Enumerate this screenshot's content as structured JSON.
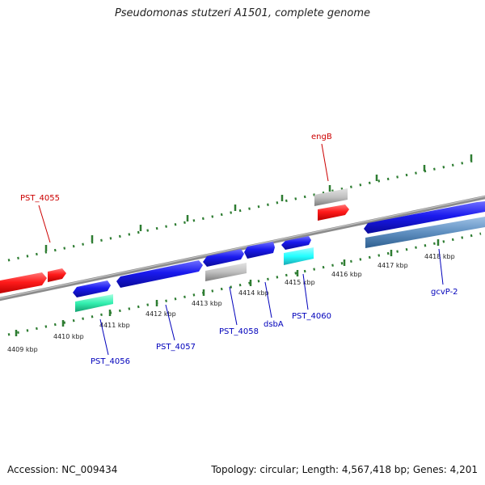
{
  "title": "Pseudomonas stutzeri A1501, complete genome",
  "footer": {
    "accession": "Accession: NC_009434",
    "summary": "Topology: circular; Length: 4,567,418 bp; Genes: 4,201"
  },
  "colors": {
    "backbone": "#8c8c8c",
    "tick": "#2e7d32",
    "kbp_label": "#222222",
    "gene_label_red": "#cc0000",
    "gene_label_blue": "#0000bb",
    "feature_red": "#ff1a1a",
    "feature_blue": "#1a1aee",
    "feature_grey": "#c0c0c0",
    "feature_cyan": "#22ffff",
    "feature_seagreen": "#33f0b0",
    "feature_steelblue": "#5f8fc0"
  },
  "kbp_labels": [
    "4409 kbp",
    "4410 kbp",
    "4411 kbp",
    "4412 kbp",
    "4413 kbp",
    "4414 kbp",
    "4415 kbp",
    "4416 kbp",
    "4417 kbp",
    "4418 kbp"
  ],
  "gene_labels_top": [
    "engB",
    "PST_4055"
  ],
  "gene_labels_bottom": [
    "PST_4056",
    "PST_4057",
    "PST_4058",
    "dsbA",
    "PST_4060",
    "gcvP-2"
  ]
}
